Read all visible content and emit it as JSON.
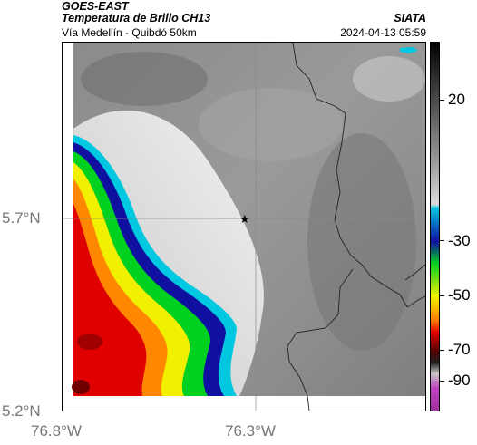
{
  "header": {
    "source": "GOES-EAST",
    "product": "Temperatura de Brillo CH13",
    "institution": "SIATA",
    "region": "Vía Medellín - Quibdó 50km",
    "timestamp": "2024-04-13 05:59"
  },
  "axes": {
    "y_ticks": [
      "5.7°N",
      "5.2°N"
    ],
    "x_ticks": [
      "76.8°W",
      "76.3°W"
    ]
  },
  "colorbar": {
    "ticks": [
      "20",
      "-30",
      "-50",
      "-70",
      "-90"
    ],
    "colors": [
      "#000000",
      "#777777",
      "#d8d8d8",
      "#00c8e0",
      "#1010a0",
      "#00d020",
      "#f0f000",
      "#ff8800",
      "#e00000",
      "#500000",
      "#a0a0a0",
      "#c040c0"
    ]
  },
  "map": {
    "marker_symbol": "★",
    "marker_icon": "star-marker-icon"
  }
}
